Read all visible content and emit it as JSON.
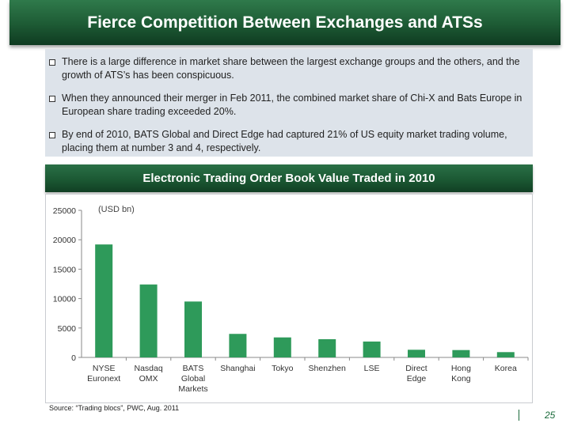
{
  "header": {
    "title": "Fierce Competition Between Exchanges and ATSs"
  },
  "bullets": [
    "There is a large difference in market share between the largest exchange groups and the others, and the growth of ATS’s has been conspicuous.",
    "When they announced their merger in Feb 2011, the combined market share of Chi-X and Bats Europe in European share trading exceeded 20%.",
    "By end of 2010, BATS Global and Direct Edge had captured 21% of US equity market trading volume, placing them at number 3 and 4, respectively."
  ],
  "chart_data": {
    "type": "bar",
    "title": "Electronic Trading Order Book Value Traded in 2010",
    "unit_label": "(USD bn)",
    "categories": [
      "NYSE Euronext",
      "Nasdaq OMX",
      "BATS Global Markets",
      "Shanghai",
      "Tokyo",
      "Shenzhen",
      "LSE",
      "Direct Edge",
      "Hong Kong",
      "Korea"
    ],
    "category_lines": [
      [
        "NYSE",
        "Euronext"
      ],
      [
        "Nasdaq",
        "OMX"
      ],
      [
        "BATS",
        "Global",
        "Markets"
      ],
      [
        "Shanghai"
      ],
      [
        "Tokyo"
      ],
      [
        "Shenzhen"
      ],
      [
        "LSE"
      ],
      [
        "Direct",
        "Edge"
      ],
      [
        "Hong",
        "Kong"
      ],
      [
        "Korea"
      ]
    ],
    "values": [
      19200,
      12400,
      9500,
      4000,
      3400,
      3100,
      2700,
      1300,
      1250,
      900
    ],
    "yticks": [
      0,
      5000,
      10000,
      15000,
      20000,
      25000
    ],
    "ylim": [
      0,
      25000
    ],
    "grid": false,
    "bar_color": "#2e9a5a"
  },
  "footer": {
    "source": "Source: “Trading blocs”, PWC, Aug. 2011",
    "page": "25"
  }
}
